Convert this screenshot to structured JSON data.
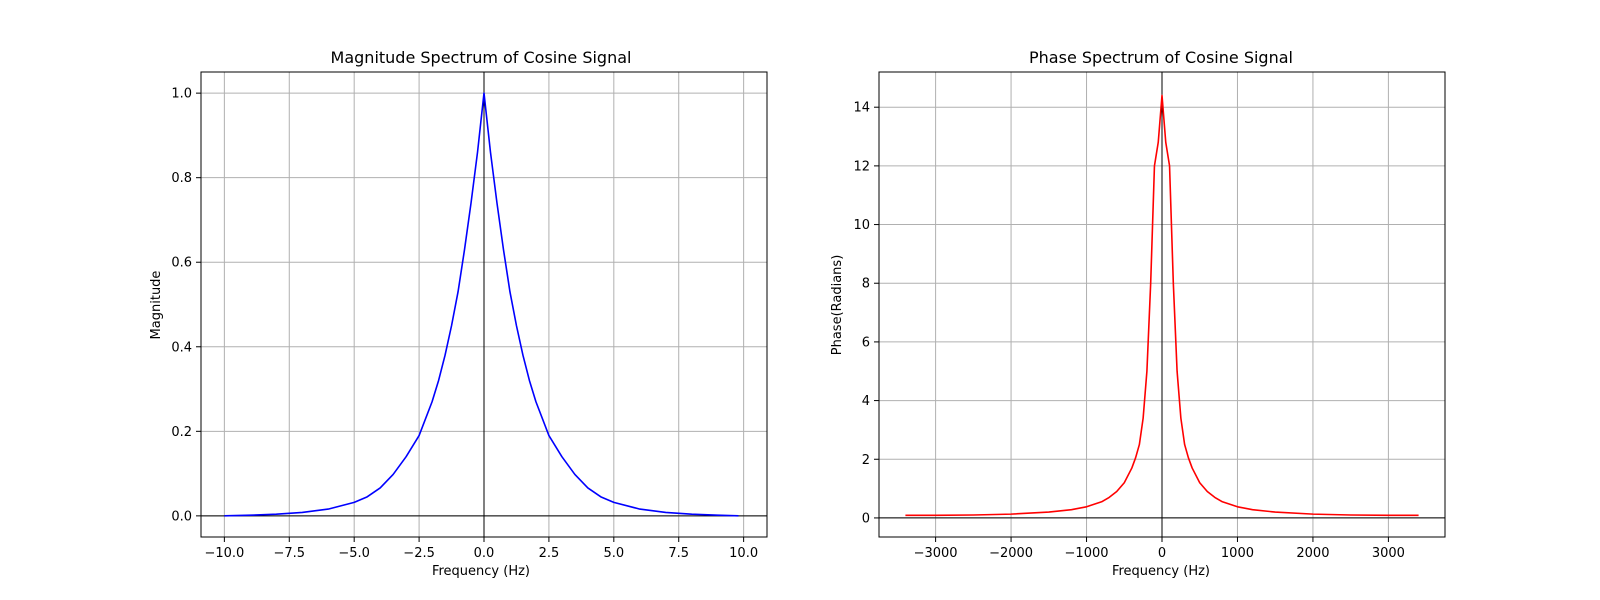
{
  "chart_data": [
    {
      "type": "line",
      "title": "Magnitude Spectrum of Cosine Signal",
      "xlabel": "Frequency (Hz)",
      "ylabel": "Magnitude",
      "xlim": [
        -10.9,
        10.9
      ],
      "ylim": [
        -0.05,
        1.05
      ],
      "xticks": [
        -10,
        -7.5,
        -5,
        -2.5,
        0,
        2.5,
        5,
        7.5,
        10
      ],
      "xtick_labels": [
        "−10.0",
        "−7.5",
        "−5.0",
        "−2.5",
        "0.0",
        "2.5",
        "5.0",
        "7.5",
        "10.0"
      ],
      "yticks": [
        0,
        0.2,
        0.4,
        0.6,
        0.8,
        1.0
      ],
      "ytick_labels": [
        "0.0",
        "0.2",
        "0.4",
        "0.6",
        "0.8",
        "1.0"
      ],
      "grid": true,
      "zero_lines": true,
      "series": [
        {
          "color": "#0000ff",
          "x": [
            -10,
            -9,
            -8,
            -7,
            -6,
            -5,
            -4.5,
            -4,
            -3.5,
            -3,
            -2.5,
            -2,
            -1.75,
            -1.5,
            -1.25,
            -1,
            -0.75,
            -0.5,
            -0.25,
            0,
            0.25,
            0.5,
            0.75,
            1,
            1.25,
            1.5,
            1.75,
            2,
            2.5,
            3,
            3.5,
            4,
            4.5,
            5,
            6,
            7,
            8,
            9,
            9.8
          ],
          "y": [
            0.0,
            0.0015,
            0.004,
            0.008,
            0.016,
            0.032,
            0.045,
            0.066,
            0.098,
            0.14,
            0.19,
            0.27,
            0.32,
            0.38,
            0.45,
            0.53,
            0.63,
            0.74,
            0.86,
            1.0,
            0.86,
            0.74,
            0.63,
            0.53,
            0.45,
            0.38,
            0.32,
            0.27,
            0.19,
            0.14,
            0.098,
            0.066,
            0.045,
            0.032,
            0.016,
            0.008,
            0.004,
            0.0015,
            0.0
          ]
        }
      ]
    },
    {
      "type": "line",
      "title": "Phase Spectrum of Cosine Signal",
      "xlabel": "Frequency (Hz)",
      "ylabel": "Phase(Radians)",
      "xlim": [
        -3750,
        3750
      ],
      "ylim": [
        -0.65,
        15.2
      ],
      "xticks": [
        -3000,
        -2000,
        -1000,
        0,
        1000,
        2000,
        3000
      ],
      "xtick_labels": [
        "−3000",
        "−2000",
        "−1000",
        "0",
        "1000",
        "2000",
        "3000"
      ],
      "yticks": [
        0,
        2,
        4,
        6,
        8,
        10,
        12,
        14
      ],
      "ytick_labels": [
        "0",
        "2",
        "4",
        "6",
        "8",
        "10",
        "12",
        "14"
      ],
      "grid": true,
      "zero_lines": true,
      "series": [
        {
          "color": "#ff0000",
          "x": [
            -3400,
            -3000,
            -2500,
            -2000,
            -1500,
            -1200,
            -1000,
            -800,
            -700,
            -600,
            -500,
            -400,
            -350,
            -300,
            -250,
            -200,
            -150,
            -100,
            -50,
            0,
            50,
            100,
            150,
            200,
            250,
            300,
            350,
            400,
            500,
            600,
            700,
            800,
            1000,
            1200,
            1500,
            2000,
            2500,
            3000,
            3400
          ],
          "y": [
            0.09,
            0.09,
            0.1,
            0.13,
            0.2,
            0.28,
            0.38,
            0.55,
            0.7,
            0.9,
            1.2,
            1.7,
            2.05,
            2.5,
            3.4,
            5.0,
            8.0,
            12.0,
            12.8,
            14.4,
            12.8,
            12.0,
            8.0,
            5.0,
            3.4,
            2.5,
            2.05,
            1.7,
            1.2,
            0.9,
            0.7,
            0.55,
            0.38,
            0.28,
            0.2,
            0.13,
            0.1,
            0.09,
            0.09
          ]
        }
      ]
    }
  ]
}
